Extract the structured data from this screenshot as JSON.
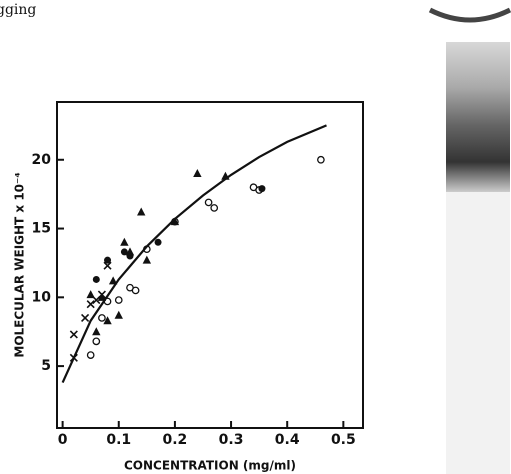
{
  "header_fragment": "gging",
  "chart_data": {
    "type": "scatter",
    "x_label": "CONCENTRATION (mg/ml)",
    "y_label": "MOLECULAR WEIGHT x 10⁻⁴",
    "xlim": [
      -0.01,
      0.535
    ],
    "ylim": [
      0.5,
      24.2
    ],
    "xticks": [
      0,
      0.1,
      0.2,
      0.3,
      0.4,
      0.5
    ],
    "yticks": [
      5,
      10,
      15,
      20
    ],
    "series": [
      {
        "marker": "open-circle",
        "color": "#111",
        "x": [
          0.05,
          0.06,
          0.07,
          0.08,
          0.1,
          0.12,
          0.13,
          0.15,
          0.2,
          0.26,
          0.27,
          0.34,
          0.35,
          0.46
        ],
        "values": [
          5.8,
          6.8,
          8.5,
          9.7,
          9.8,
          10.7,
          10.5,
          13.5,
          15.5,
          16.9,
          16.5,
          18,
          17.8,
          20
        ]
      },
      {
        "marker": "filled-circle",
        "color": "#111",
        "x": [
          0.06,
          0.08,
          0.11,
          0.12,
          0.17,
          0.355
        ],
        "values": [
          11.3,
          12.7,
          13.3,
          13,
          14,
          17.9
        ]
      },
      {
        "marker": "triangle",
        "color": "#111",
        "x": [
          0.05,
          0.06,
          0.07,
          0.08,
          0.09,
          0.1,
          0.11,
          0.12,
          0.14,
          0.15,
          0.2,
          0.24,
          0.29
        ],
        "values": [
          10.2,
          7.5,
          10,
          8.3,
          11.2,
          8.7,
          14,
          13.3,
          16.2,
          12.7,
          15.5,
          19,
          18.8
        ]
      },
      {
        "marker": "cross",
        "color": "#111",
        "x": [
          0.02,
          0.02,
          0.04,
          0.05,
          0.06,
          0.07,
          0.08
        ],
        "values": [
          5.6,
          7.3,
          8.5,
          9.5,
          9.8,
          10.2,
          12.3
        ]
      },
      {
        "marker": "line",
        "color": "#111",
        "x": [
          0,
          0.05,
          0.1,
          0.15,
          0.2,
          0.25,
          0.3,
          0.35,
          0.4,
          0.47
        ],
        "values": [
          3.8,
          8.3,
          11.3,
          13.7,
          15.7,
          17.4,
          18.9,
          20.2,
          21.3,
          22.5
        ]
      }
    ]
  }
}
